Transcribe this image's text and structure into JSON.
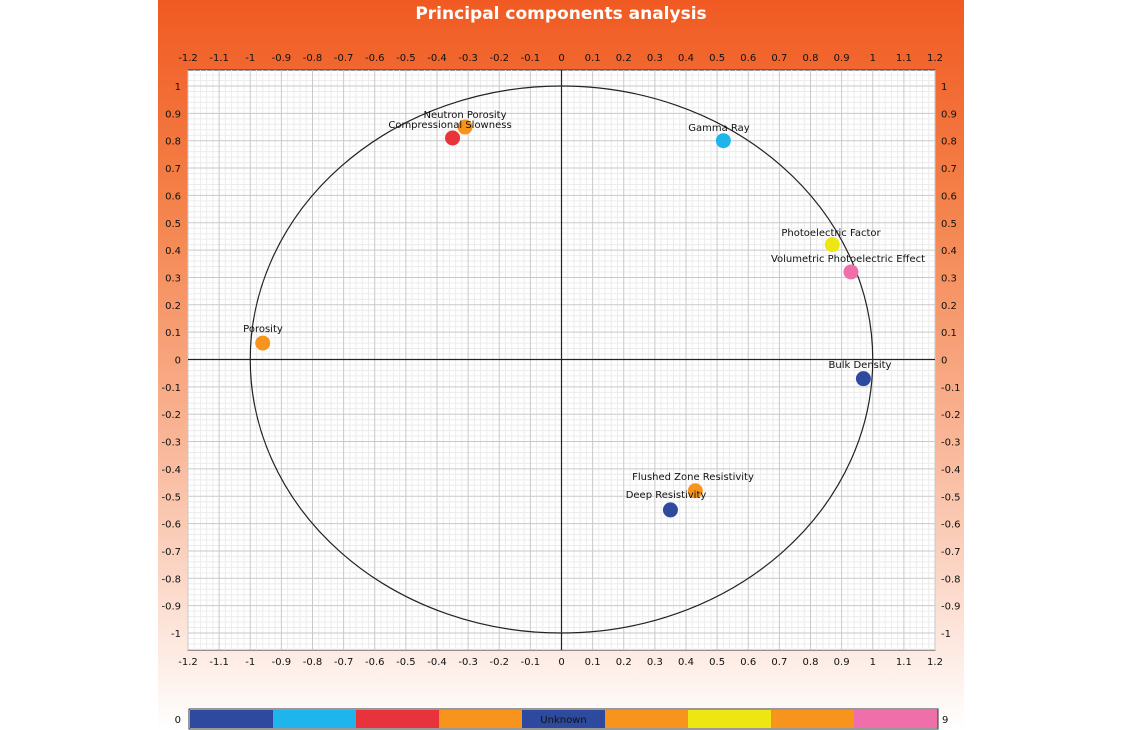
{
  "chart_data": {
    "type": "scatter",
    "title": "Principal components analysis",
    "xlim": [
      -1.2,
      1.2
    ],
    "ylim": [
      -1,
      1
    ],
    "x_ticks": [
      "-1.2",
      "-1.1",
      "-1",
      "-0.9",
      "-0.8",
      "-0.7",
      "-0.6",
      "-0.5",
      "-0.4",
      "-0.3",
      "-0.2",
      "-0.1",
      "0",
      "0.1",
      "0.2",
      "0.3",
      "0.4",
      "0.5",
      "0.6",
      "0.7",
      "0.8",
      "0.9",
      "1",
      "1.1",
      "1.2"
    ],
    "y_ticks": [
      "1",
      "0.9",
      "0.8",
      "0.7",
      "0.6",
      "0.5",
      "0.4",
      "0.3",
      "0.2",
      "0.1",
      "0",
      "-0.1",
      "-0.2",
      "-0.3",
      "-0.4",
      "-0.5",
      "-0.6",
      "-0.7",
      "-0.8",
      "-0.9",
      "-1"
    ],
    "grid": true,
    "unit_circle": true,
    "points": [
      {
        "label": "Neutron Porosity",
        "x": -0.31,
        "y": 0.85,
        "color": "#f7941d"
      },
      {
        "label": "Compressional Slowness",
        "x": -0.35,
        "y": 0.81,
        "color": "#e8323c"
      },
      {
        "label": "Gamma Ray",
        "x": 0.52,
        "y": 0.8,
        "color": "#1eb4ec"
      },
      {
        "label": "Photoelectric Factor",
        "x": 0.87,
        "y": 0.42,
        "color": "#ede613"
      },
      {
        "label": "Volumetric Photoelectric Effect",
        "x": 0.93,
        "y": 0.32,
        "color": "#ef6fab"
      },
      {
        "label": "Porosity",
        "x": -0.96,
        "y": 0.06,
        "color": "#f7941d"
      },
      {
        "label": "Bulk Density",
        "x": 0.97,
        "y": -0.07,
        "color": "#2e4a9e"
      },
      {
        "label": "Flushed Zone Resistivity",
        "x": 0.43,
        "y": -0.48,
        "color": "#f7941d"
      },
      {
        "label": "Deep Resistivity",
        "x": 0.35,
        "y": -0.55,
        "color": "#2e4a9e"
      }
    ],
    "colorbar": {
      "min_label": "0",
      "max_label": "9",
      "center_label": "Unknown",
      "colors": [
        "#2e4a9e",
        "#1eb4ec",
        "#e8323c",
        "#f7941d",
        "#2e4a9e",
        "#f7941d",
        "#ede613",
        "#f7941d",
        "#ef6fab"
      ]
    }
  }
}
